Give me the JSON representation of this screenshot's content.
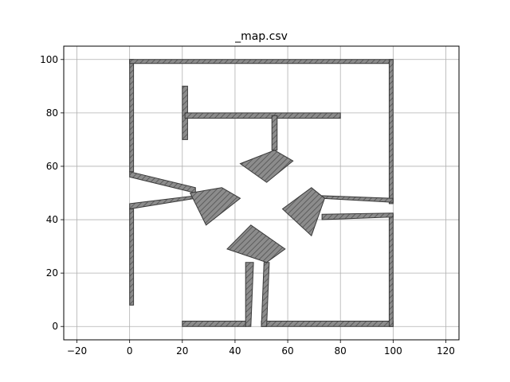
{
  "chart_data": {
    "type": "line",
    "title": "_map.csv",
    "xlabel": "",
    "ylabel": "",
    "xlim": [
      -25,
      125
    ],
    "ylim": [
      -5,
      105
    ],
    "xticks": [
      -20,
      0,
      20,
      40,
      60,
      80,
      100,
      120
    ],
    "yticks": [
      0,
      20,
      40,
      60,
      80,
      100
    ],
    "xtick_labels": [
      "−20",
      "0",
      "20",
      "40",
      "60",
      "80",
      "100",
      "120"
    ],
    "ytick_labels": [
      "0",
      "20",
      "40",
      "60",
      "80",
      "100"
    ],
    "grid": true,
    "style": {
      "fill": "#8c8c8c",
      "edge": "#3a3a3a",
      "hatch": "#5c5c5c",
      "grid": "#b0b0b0"
    },
    "series": [
      {
        "values": [
          [
            0,
            8
          ],
          [
            1.5,
            8
          ],
          [
            1.5,
            44
          ],
          [
            0,
            44
          ]
        ]
      },
      {
        "values": [
          [
            0,
            44
          ],
          [
            25,
            48
          ],
          [
            25,
            49
          ],
          [
            0,
            46
          ]
        ]
      },
      {
        "values": [
          [
            0,
            56
          ],
          [
            25,
            50
          ],
          [
            25,
            52
          ],
          [
            0,
            58
          ]
        ]
      },
      {
        "values": [
          [
            0,
            58
          ],
          [
            1.5,
            58
          ],
          [
            1.5,
            100
          ],
          [
            0,
            100
          ]
        ]
      },
      {
        "values": [
          [
            0,
            98.5
          ],
          [
            100,
            98.5
          ],
          [
            100,
            100
          ],
          [
            0,
            100
          ]
        ]
      },
      {
        "values": [
          [
            98.5,
            46
          ],
          [
            100,
            46
          ],
          [
            100,
            100
          ],
          [
            98.5,
            100
          ]
        ]
      },
      {
        "values": [
          [
            20,
            70
          ],
          [
            22,
            70
          ],
          [
            22,
            90
          ],
          [
            20,
            90
          ]
        ]
      },
      {
        "values": [
          [
            21,
            78
          ],
          [
            80,
            78
          ],
          [
            80,
            80
          ],
          [
            21,
            80
          ]
        ]
      },
      {
        "values": [
          [
            54,
            66
          ],
          [
            56,
            66
          ],
          [
            56,
            79
          ],
          [
            54,
            79
          ]
        ]
      },
      {
        "values": [
          [
            42,
            61
          ],
          [
            55,
            66
          ],
          [
            62,
            62
          ],
          [
            52,
            54
          ]
        ]
      },
      {
        "values": [
          [
            20,
            0
          ],
          [
            44,
            0
          ],
          [
            44,
            2
          ],
          [
            20,
            2
          ]
        ]
      },
      {
        "values": [
          [
            50,
            0
          ],
          [
            100,
            0
          ],
          [
            100,
            2
          ],
          [
            50,
            2
          ]
        ]
      },
      {
        "values": [
          [
            98.5,
            0
          ],
          [
            100,
            0
          ],
          [
            100,
            42
          ],
          [
            98.5,
            42
          ]
        ]
      },
      {
        "values": [
          [
            73,
            40
          ],
          [
            100,
            41
          ],
          [
            100,
            42.5
          ],
          [
            73,
            42
          ]
        ]
      },
      {
        "values": [
          [
            73,
            48
          ],
          [
            100,
            46.5
          ],
          [
            100,
            48
          ],
          [
            73,
            49
          ]
        ]
      },
      {
        "values": [
          [
            35,
            52
          ],
          [
            23,
            50
          ],
          [
            29,
            38
          ],
          [
            42,
            48
          ]
        ]
      },
      {
        "values": [
          [
            69,
            52
          ],
          [
            74,
            48
          ],
          [
            69,
            34
          ],
          [
            58,
            44
          ]
        ]
      },
      {
        "values": [
          [
            46,
            38
          ],
          [
            59,
            29
          ],
          [
            52,
            24
          ],
          [
            37,
            29
          ]
        ]
      },
      {
        "values": [
          [
            44,
            24
          ],
          [
            47,
            24
          ],
          [
            46,
            0
          ],
          [
            44,
            0
          ]
        ]
      },
      {
        "values": [
          [
            51,
            24
          ],
          [
            53,
            24
          ],
          [
            52,
            0
          ],
          [
            50,
            0
          ]
        ]
      }
    ]
  }
}
